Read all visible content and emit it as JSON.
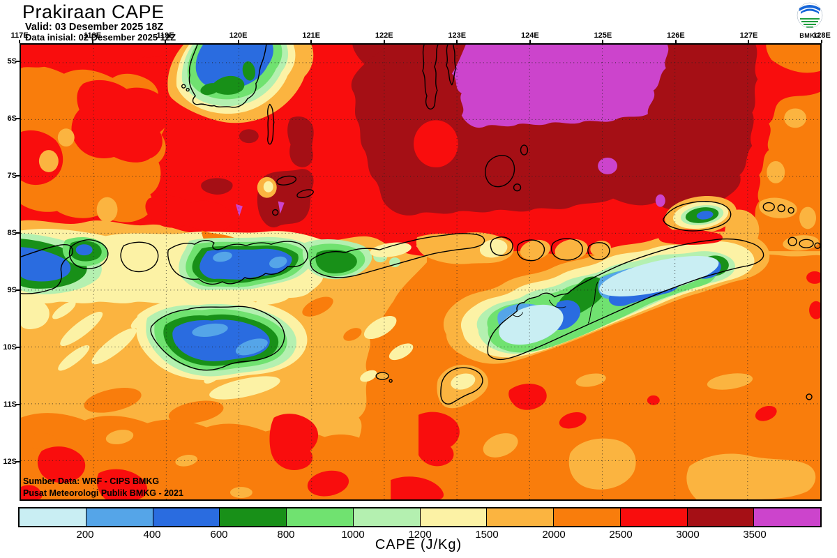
{
  "header": {
    "title": "Prakiraan CAPE",
    "valid": "Valid: 03 Desember 2025 18Z",
    "init": "Data inisial: 02 Desember 2025 12Z"
  },
  "logo": {
    "org": "BMKG"
  },
  "map": {
    "lon_labels": [
      "117E",
      "118E",
      "119E",
      "120E",
      "121E",
      "122E",
      "123E",
      "124E",
      "125E",
      "126E",
      "127E",
      "128E"
    ],
    "lat_labels": [
      "5S",
      "6S",
      "7S",
      "8S",
      "9S",
      "10S",
      "11S",
      "12S"
    ],
    "credits": {
      "line1": "Sumber Data: WRF - CIPS BMKG",
      "line2": "Pusat Meteorologi Publik BMKG -  2021"
    }
  },
  "colorbar": {
    "title": "CAPE (J/Kg)",
    "ticks": [
      "200",
      "400",
      "600",
      "800",
      "1000",
      "1200",
      "1500",
      "2000",
      "2500",
      "3000",
      "3500"
    ],
    "colors": [
      "#C9EEF3",
      "#55A5E8",
      "#2A6CE0",
      "#189018",
      "#70E270",
      "#B4F0B0",
      "#FCF2A5",
      "#FBB440",
      "#F97D0C",
      "#F90D0D",
      "#A50F15",
      "#CC44CC"
    ]
  }
}
